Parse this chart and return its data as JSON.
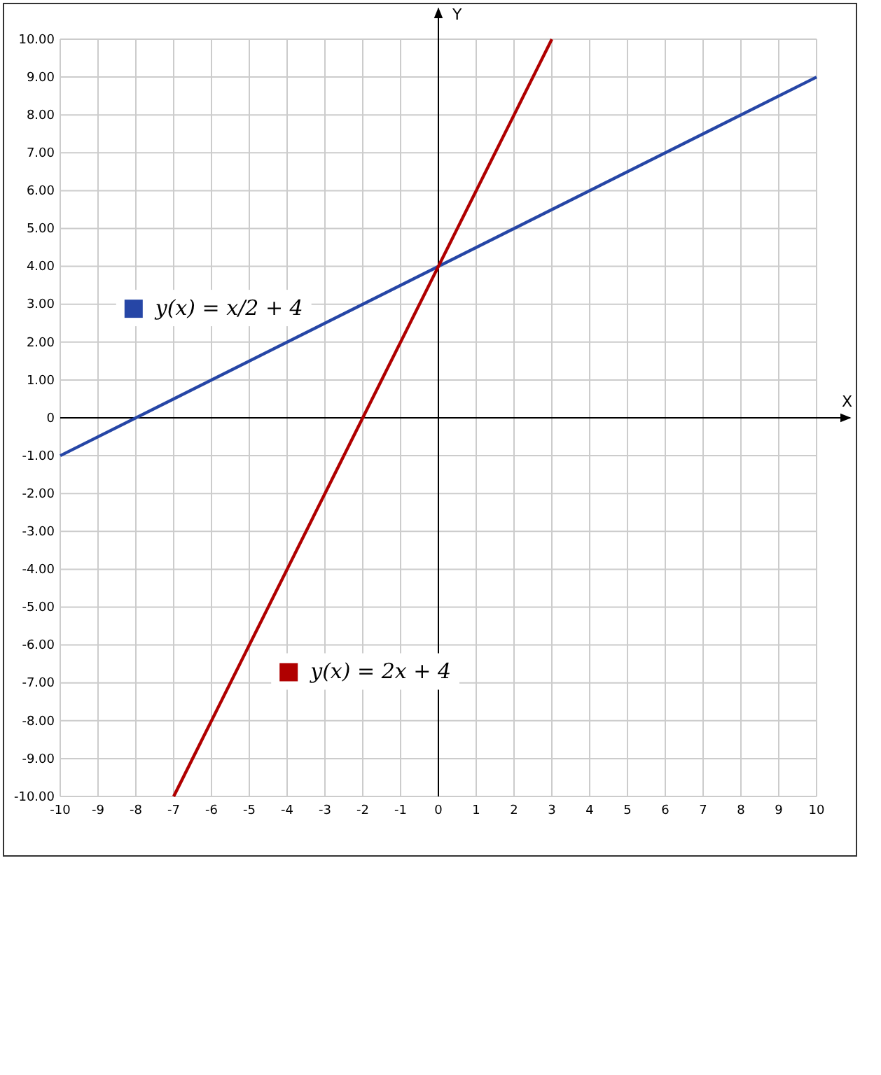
{
  "chart_data": {
    "type": "line",
    "xlabel": "X",
    "ylabel": "Y",
    "xlim": [
      -10,
      10
    ],
    "ylim": [
      -10,
      10
    ],
    "xticks": [
      -10,
      -9,
      -8,
      -7,
      -6,
      -5,
      -4,
      -3,
      -2,
      -1,
      0,
      1,
      2,
      3,
      4,
      5,
      6,
      7,
      8,
      9,
      10
    ],
    "yticks": [
      {
        "value": 10,
        "label": "10.00"
      },
      {
        "value": 9,
        "label": "9.00"
      },
      {
        "value": 8,
        "label": "8.00"
      },
      {
        "value": 7,
        "label": "7.00"
      },
      {
        "value": 6,
        "label": "6.00"
      },
      {
        "value": 5,
        "label": "5.00"
      },
      {
        "value": 4,
        "label": "4.00"
      },
      {
        "value": 3,
        "label": "3.00"
      },
      {
        "value": 2,
        "label": "2.00"
      },
      {
        "value": 1,
        "label": "1.00"
      },
      {
        "value": 0,
        "label": "0"
      },
      {
        "value": -1,
        "label": "-1.00"
      },
      {
        "value": -2,
        "label": "-2.00"
      },
      {
        "value": -3,
        "label": "-3.00"
      },
      {
        "value": -4,
        "label": "-4.00"
      },
      {
        "value": -5,
        "label": "-5.00"
      },
      {
        "value": -6,
        "label": "-6.00"
      },
      {
        "value": -7,
        "label": "-7.00"
      },
      {
        "value": -8,
        "label": "-8.00"
      },
      {
        "value": -9,
        "label": "-9.00"
      },
      {
        "value": -10,
        "label": "-10.00"
      }
    ],
    "grid": true,
    "legend": "left",
    "marker": "none",
    "line_style": "solid",
    "series": [
      {
        "name": "y(x) = x/2 + 4",
        "color": "#2646a6",
        "x": [
          -10,
          10
        ],
        "values": [
          -1,
          9
        ]
      },
      {
        "name": "y(x) = 2x + 4",
        "color": "#b00000",
        "x": [
          -7,
          3
        ],
        "values": [
          -10,
          10
        ]
      }
    ]
  }
}
